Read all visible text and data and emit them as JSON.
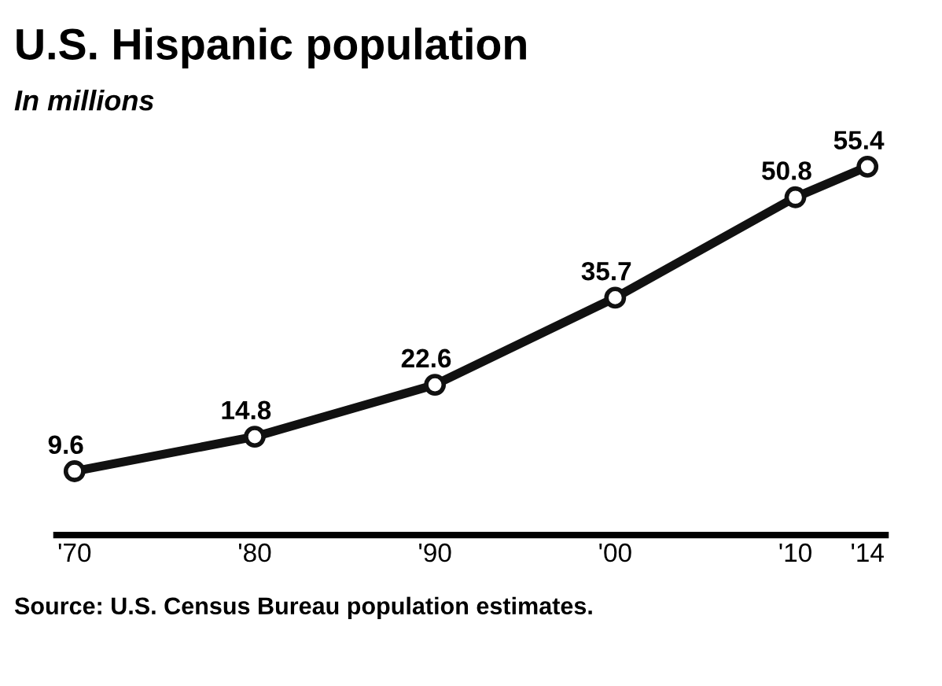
{
  "chart_data": {
    "type": "line",
    "title": "U.S. Hispanic population",
    "subtitle": "In millions",
    "x": [
      1970,
      1980,
      1990,
      2000,
      2010,
      2014
    ],
    "series": [
      {
        "color": "#111111",
        "values": [
          9.6,
          14.8,
          22.6,
          35.7,
          50.8,
          55.4
        ]
      }
    ],
    "xlim": [
      1969,
      2015
    ],
    "xticks": [
      {
        "value": 1970,
        "label": "'70"
      },
      {
        "value": 1980,
        "label": "'80"
      },
      {
        "value": 1990,
        "label": "'90"
      },
      {
        "value": 2000,
        "label": "'00"
      },
      {
        "value": 2010,
        "label": "'10"
      },
      {
        "value": 2014,
        "label": "'14"
      }
    ],
    "tick_labels": "x",
    "data_labels": true,
    "marker": "circle",
    "line_style": "solid",
    "grid": false,
    "legend": false,
    "annotations": [
      "Source: U.S. Census Bureau population estimates."
    ]
  }
}
